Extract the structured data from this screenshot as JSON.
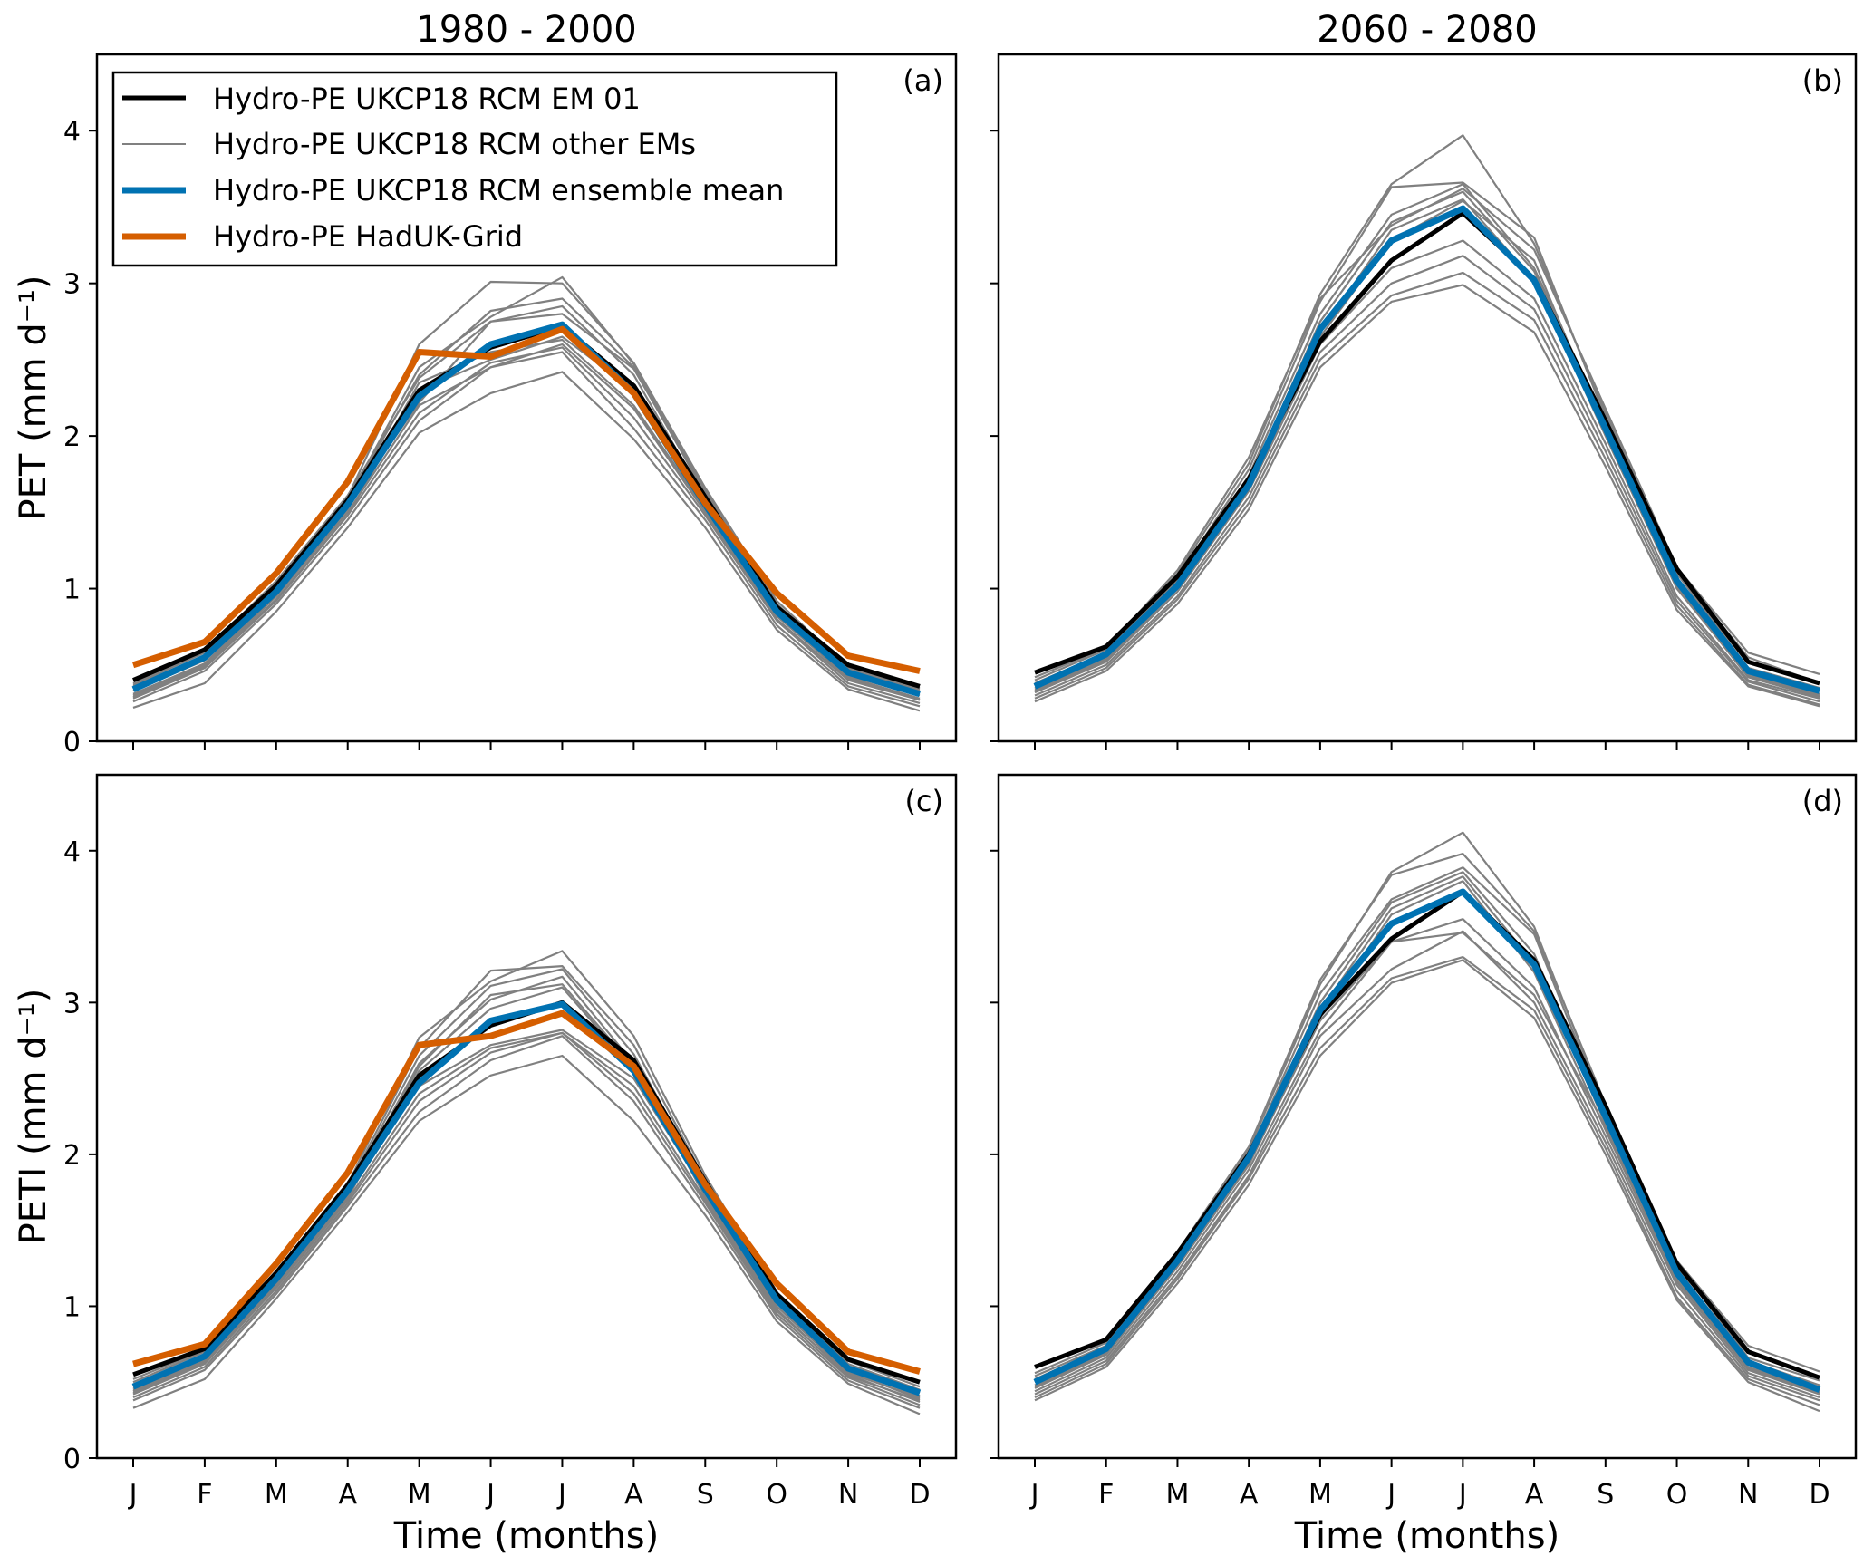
{
  "figure": {
    "column_titles": [
      "1980 - 2000",
      "2060 - 2080"
    ],
    "row_ylabels": [
      "PET (mm d⁻¹)",
      "PETI (mm d⁻¹)"
    ],
    "xlabel": "Time (months)"
  },
  "legend": {
    "placement": "upper-left of panel (a)",
    "entries": [
      {
        "label": "Hydro-PE UKCP18 RCM EM 01",
        "color": "#000000",
        "style": "thick"
      },
      {
        "label": "Hydro-PE UKCP18 RCM other EMs",
        "color": "#808080",
        "style": "thin"
      },
      {
        "label": "Hydro-PE UKCP18 RCM ensemble mean",
        "color": "#0072b2",
        "style": "thick"
      },
      {
        "label": "Hydro-PE HadUK-Grid",
        "color": "#d55e00",
        "style": "thick"
      }
    ]
  },
  "colors": {
    "em01": "#000000",
    "other": "#808080",
    "mean": "#0072b2",
    "haduk": "#d55e00"
  },
  "chart_data": [
    {
      "type": "line",
      "panel_label": "(a)",
      "title": "1980 - 2000",
      "xlabel": "Time (months)",
      "ylabel": "PET (mm d⁻¹)",
      "categories": [
        "J",
        "F",
        "M",
        "A",
        "M",
        "J",
        "J",
        "A",
        "S",
        "O",
        "N",
        "D"
      ],
      "ylim": [
        0,
        4.5
      ],
      "yticks": [
        0,
        1,
        2,
        3,
        4
      ],
      "grid": false,
      "em01": [
        0.4,
        0.6,
        1.02,
        1.58,
        2.3,
        2.58,
        2.72,
        2.33,
        1.6,
        0.88,
        0.5,
        0.36
      ],
      "mean": [
        0.34,
        0.55,
        0.98,
        1.55,
        2.26,
        2.6,
        2.73,
        2.28,
        1.55,
        0.85,
        0.45,
        0.31
      ],
      "haduk": [
        0.5,
        0.65,
        1.1,
        1.7,
        2.55,
        2.52,
        2.7,
        2.28,
        1.56,
        0.97,
        0.56,
        0.46
      ],
      "others": [
        [
          0.22,
          0.38,
          0.85,
          1.4,
          2.02,
          2.28,
          2.42,
          1.98,
          1.4,
          0.73,
          0.34,
          0.2
        ],
        [
          0.26,
          0.46,
          0.9,
          1.45,
          2.1,
          2.45,
          2.55,
          2.05,
          1.45,
          0.76,
          0.36,
          0.23
        ],
        [
          0.28,
          0.48,
          0.92,
          1.48,
          2.15,
          2.48,
          2.58,
          2.12,
          1.48,
          0.79,
          0.38,
          0.25
        ],
        [
          0.3,
          0.5,
          0.95,
          1.5,
          2.2,
          2.45,
          2.6,
          2.18,
          1.5,
          0.8,
          0.4,
          0.27
        ],
        [
          0.31,
          0.51,
          0.96,
          1.52,
          2.35,
          2.55,
          2.63,
          2.2,
          1.52,
          0.82,
          0.42,
          0.28
        ],
        [
          0.33,
          0.53,
          0.98,
          1.55,
          2.22,
          2.75,
          2.85,
          2.4,
          1.58,
          0.84,
          0.43,
          0.3
        ],
        [
          0.35,
          0.55,
          1.0,
          1.57,
          2.4,
          2.82,
          2.9,
          2.45,
          1.62,
          0.87,
          0.45,
          0.32
        ],
        [
          0.36,
          0.56,
          1.02,
          1.58,
          2.45,
          2.78,
          3.04,
          2.47,
          1.64,
          0.9,
          0.47,
          0.34
        ],
        [
          0.37,
          0.58,
          1.04,
          1.6,
          2.6,
          3.01,
          3.0,
          2.48,
          1.66,
          0.92,
          0.48,
          0.35
        ],
        [
          0.38,
          0.59,
          1.05,
          1.61,
          2.38,
          2.75,
          2.8,
          2.44,
          1.63,
          0.89,
          0.46,
          0.33
        ],
        [
          0.29,
          0.49,
          0.93,
          1.48,
          2.3,
          2.5,
          2.65,
          2.3,
          1.55,
          0.83,
          0.41,
          0.27
        ]
      ]
    },
    {
      "type": "line",
      "panel_label": "(b)",
      "title": "2060 - 2080",
      "xlabel": "Time (months)",
      "ylabel": "",
      "categories": [
        "J",
        "F",
        "M",
        "A",
        "M",
        "J",
        "J",
        "A",
        "S",
        "O",
        "N",
        "D"
      ],
      "ylim": [
        0,
        4.5
      ],
      "yticks": [
        0,
        1,
        2,
        3,
        4
      ],
      "grid": false,
      "em01": [
        0.45,
        0.62,
        1.08,
        1.72,
        2.62,
        3.15,
        3.46,
        3.03,
        2.1,
        1.13,
        0.52,
        0.38
      ],
      "mean": [
        0.36,
        0.57,
        1.02,
        1.68,
        2.7,
        3.28,
        3.49,
        3.02,
        2.05,
        1.05,
        0.46,
        0.33
      ],
      "others": [
        [
          0.26,
          0.46,
          0.9,
          1.52,
          2.45,
          2.88,
          2.99,
          2.68,
          1.8,
          0.86,
          0.36,
          0.23
        ],
        [
          0.28,
          0.48,
          0.93,
          1.56,
          2.5,
          2.92,
          3.07,
          2.76,
          1.85,
          0.89,
          0.37,
          0.24
        ],
        [
          0.3,
          0.5,
          0.95,
          1.6,
          2.55,
          3.0,
          3.18,
          2.83,
          1.9,
          0.92,
          0.39,
          0.26
        ],
        [
          0.32,
          0.52,
          0.98,
          1.64,
          2.6,
          3.1,
          3.28,
          2.9,
          1.95,
          0.95,
          0.4,
          0.28
        ],
        [
          0.34,
          0.54,
          1.0,
          1.66,
          2.68,
          3.35,
          3.55,
          3.02,
          2.0,
          1.0,
          0.43,
          0.3
        ],
        [
          0.35,
          0.55,
          1.02,
          1.7,
          2.75,
          3.4,
          3.6,
          3.08,
          2.05,
          1.03,
          0.44,
          0.31
        ],
        [
          0.37,
          0.57,
          1.05,
          1.74,
          2.8,
          3.45,
          3.65,
          3.1,
          2.08,
          1.06,
          0.46,
          0.33
        ],
        [
          0.38,
          0.58,
          1.07,
          1.78,
          2.88,
          3.63,
          3.66,
          3.3,
          2.12,
          1.1,
          0.48,
          0.35
        ],
        [
          0.4,
          0.6,
          1.1,
          1.82,
          2.93,
          3.65,
          3.97,
          3.26,
          2.15,
          1.12,
          0.55,
          0.38
        ],
        [
          0.42,
          0.61,
          1.12,
          1.86,
          2.9,
          3.38,
          3.62,
          3.22,
          2.18,
          1.14,
          0.58,
          0.44
        ],
        [
          0.33,
          0.53,
          1.0,
          1.65,
          2.65,
          3.28,
          3.54,
          3.15,
          2.02,
          1.01,
          0.42,
          0.29
        ]
      ]
    },
    {
      "type": "line",
      "panel_label": "(c)",
      "title": "",
      "xlabel": "Time (months)",
      "ylabel": "PETI (mm d⁻¹)",
      "categories": [
        "J",
        "F",
        "M",
        "A",
        "M",
        "J",
        "J",
        "A",
        "S",
        "O",
        "N",
        "D"
      ],
      "ylim": [
        0,
        4.5
      ],
      "yticks": [
        0,
        1,
        2,
        3,
        4
      ],
      "grid": false,
      "em01": [
        0.55,
        0.72,
        1.22,
        1.8,
        2.52,
        2.85,
        3.0,
        2.62,
        1.82,
        1.08,
        0.65,
        0.5
      ],
      "mean": [
        0.47,
        0.67,
        1.18,
        1.76,
        2.47,
        2.88,
        2.99,
        2.55,
        1.77,
        1.04,
        0.59,
        0.43
      ],
      "haduk": [
        0.62,
        0.75,
        1.28,
        1.88,
        2.72,
        2.78,
        2.93,
        2.58,
        1.8,
        1.15,
        0.7,
        0.57
      ],
      "others": [
        [
          0.33,
          0.52,
          1.05,
          1.62,
          2.22,
          2.52,
          2.65,
          2.22,
          1.6,
          0.9,
          0.49,
          0.29
        ],
        [
          0.38,
          0.58,
          1.08,
          1.66,
          2.28,
          2.62,
          2.78,
          2.35,
          1.65,
          0.93,
          0.51,
          0.33
        ],
        [
          0.4,
          0.6,
          1.1,
          1.68,
          2.35,
          2.67,
          2.8,
          2.4,
          1.68,
          0.95,
          0.53,
          0.35
        ],
        [
          0.42,
          0.62,
          1.12,
          1.7,
          2.4,
          2.7,
          2.8,
          2.45,
          1.7,
          0.97,
          0.55,
          0.37
        ],
        [
          0.44,
          0.64,
          1.14,
          1.72,
          2.55,
          2.96,
          3.1,
          2.56,
          1.74,
          1.0,
          0.57,
          0.39
        ],
        [
          0.46,
          0.66,
          1.16,
          1.74,
          2.6,
          3.02,
          3.17,
          2.6,
          1.77,
          1.02,
          0.58,
          0.41
        ],
        [
          0.48,
          0.68,
          1.18,
          1.76,
          2.65,
          3.11,
          3.22,
          2.66,
          1.8,
          1.04,
          0.6,
          0.43
        ],
        [
          0.5,
          0.7,
          1.2,
          1.78,
          2.7,
          3.21,
          3.24,
          2.72,
          1.83,
          1.06,
          0.62,
          0.45
        ],
        [
          0.52,
          0.71,
          1.22,
          1.8,
          2.77,
          3.14,
          3.34,
          2.78,
          1.86,
          1.08,
          0.64,
          0.47
        ],
        [
          0.45,
          0.65,
          1.15,
          1.73,
          2.45,
          2.72,
          2.82,
          2.5,
          1.75,
          1.0,
          0.56,
          0.4
        ],
        [
          0.43,
          0.63,
          1.13,
          1.71,
          2.58,
          3.05,
          3.12,
          2.58,
          1.72,
          0.98,
          0.54,
          0.38
        ]
      ]
    },
    {
      "type": "line",
      "panel_label": "(d)",
      "title": "",
      "xlabel": "Time (months)",
      "ylabel": "",
      "categories": [
        "J",
        "F",
        "M",
        "A",
        "M",
        "J",
        "J",
        "A",
        "S",
        "O",
        "N",
        "D"
      ],
      "ylim": [
        0,
        4.5
      ],
      "yticks": [
        0,
        1,
        2,
        3,
        4
      ],
      "grid": false,
      "em01": [
        0.6,
        0.78,
        1.35,
        2.0,
        2.92,
        3.42,
        3.73,
        3.28,
        2.32,
        1.28,
        0.7,
        0.53
      ],
      "mean": [
        0.5,
        0.72,
        1.3,
        1.98,
        2.95,
        3.52,
        3.73,
        3.25,
        2.25,
        1.22,
        0.63,
        0.45
      ],
      "others": [
        [
          0.38,
          0.6,
          1.15,
          1.8,
          2.65,
          3.13,
          3.28,
          2.9,
          2.0,
          1.04,
          0.5,
          0.31
        ],
        [
          0.4,
          0.62,
          1.18,
          1.84,
          2.7,
          3.16,
          3.3,
          2.95,
          2.04,
          1.06,
          0.52,
          0.35
        ],
        [
          0.42,
          0.64,
          1.2,
          1.86,
          2.78,
          3.22,
          3.47,
          3.0,
          2.08,
          1.1,
          0.54,
          0.38
        ],
        [
          0.44,
          0.66,
          1.23,
          1.9,
          2.82,
          3.4,
          3.55,
          3.1,
          2.12,
          1.14,
          0.56,
          0.4
        ],
        [
          0.46,
          0.68,
          1.26,
          1.93,
          2.9,
          3.58,
          3.8,
          3.2,
          2.16,
          1.16,
          0.58,
          0.42
        ],
        [
          0.48,
          0.7,
          1.28,
          1.95,
          2.95,
          3.62,
          3.83,
          3.26,
          2.2,
          1.19,
          0.6,
          0.44
        ],
        [
          0.5,
          0.71,
          1.3,
          1.97,
          3.0,
          3.66,
          3.86,
          3.32,
          2.23,
          1.22,
          0.62,
          0.46
        ],
        [
          0.52,
          0.73,
          1.32,
          2.0,
          3.06,
          3.68,
          3.89,
          3.45,
          2.27,
          1.25,
          0.64,
          0.48
        ],
        [
          0.54,
          0.74,
          1.34,
          2.03,
          3.12,
          3.86,
          4.12,
          3.5,
          2.3,
          1.28,
          0.66,
          0.51
        ],
        [
          0.56,
          0.76,
          1.36,
          2.05,
          3.15,
          3.84,
          3.98,
          3.47,
          2.33,
          1.3,
          0.74,
          0.57
        ],
        [
          0.47,
          0.69,
          1.27,
          1.94,
          2.88,
          3.4,
          3.46,
          3.05,
          2.18,
          1.17,
          0.59,
          0.43
        ]
      ]
    }
  ]
}
